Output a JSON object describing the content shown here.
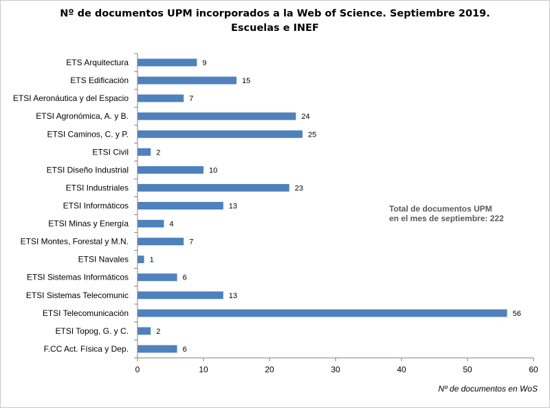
{
  "chart_data": {
    "type": "bar",
    "orientation": "horizontal",
    "title": [
      "Nº de documentos UPM incorporados a la Web of Science. Septiembre 2019.",
      "Escuelas e INEF"
    ],
    "categories": [
      "ETS Arquitectura",
      "ETS Edificación",
      "ETSI Aeronáutica y del Espacio",
      "ETSI Agronómica, A. y B.",
      "ETSI Caminos, C. y P.",
      "ETSI Civil",
      "ETSI Diseño Industrial",
      "ETSI Industriales",
      "ETSI Informáticos",
      "ETSI Minas y Energía",
      "ETSI Montes, Forestal y M.N.",
      "ETSI Navales",
      "ETSI Sistemas Informáticos",
      "ETSI Sistemas Telecomunic",
      "ETSI Telecomunicación",
      "ETSI Topog, G. y C.",
      "F.CC Act. Física y Dep."
    ],
    "values": [
      9,
      15,
      7,
      24,
      25,
      2,
      10,
      23,
      13,
      4,
      7,
      1,
      6,
      13,
      56,
      2,
      6
    ],
    "xlabel": "Nº de documentos en WoS",
    "ylabel": "",
    "xlim": [
      0,
      60
    ],
    "xticks": [
      0,
      10,
      20,
      30,
      40,
      50,
      60
    ],
    "grid": false,
    "bar_color": "#4f81bd",
    "annotation": [
      "Total de documentos  UPM",
      "en el mes de septiembre: 222"
    ]
  }
}
